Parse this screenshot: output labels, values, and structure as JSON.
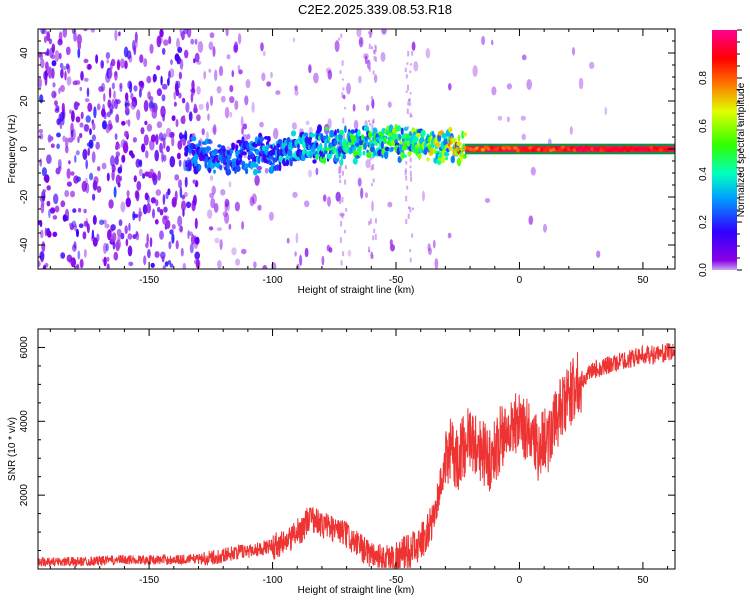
{
  "title": "C2E2.2025.339.08.53.R18",
  "colors": {
    "snr_line": "#ee3333",
    "spectrogram_scatter": "#8a2be2",
    "track_core": "#e6194b"
  },
  "chart_data": [
    {
      "type": "heatmap",
      "name": "spectrogram",
      "xlabel": "Height of straight line (km)",
      "ylabel": "Frequency (Hz)",
      "xlim": [
        -195,
        63
      ],
      "ylim": [
        -50,
        50
      ],
      "xticks": [
        -150,
        -100,
        -50,
        0,
        50
      ],
      "yticks": [
        -40,
        -20,
        0,
        20,
        40
      ],
      "xtick_labels": [
        "-150",
        "-100",
        "-50",
        "0",
        "50"
      ],
      "ytick_labels": [
        "-40",
        "-20",
        "0",
        "20",
        "40"
      ],
      "colorbar": {
        "label": "Normalized spectral amplitude",
        "range": [
          0,
          1
        ],
        "ticks": [
          0.0,
          0.2,
          0.4,
          0.6,
          0.8
        ],
        "tick_labels": [
          "0.0",
          "0.2",
          "0.4",
          "0.6",
          "0.8"
        ],
        "colormap": "hsv (violet to red)"
      },
      "track": {
        "x": [
          -130,
          -115,
          -100,
          -90,
          -80,
          -70,
          -60,
          -50,
          -40,
          -30,
          -20,
          -10,
          0,
          10,
          20,
          40,
          63
        ],
        "freq": [
          -3,
          -3,
          -2,
          0,
          1,
          2,
          3,
          3,
          2,
          1,
          0,
          0,
          0,
          0,
          0,
          0,
          0
        ],
        "amplitude": [
          0.25,
          0.25,
          0.3,
          0.35,
          0.4,
          0.45,
          0.45,
          0.5,
          0.55,
          0.6,
          0.85,
          0.9,
          0.9,
          0.9,
          0.95,
          0.95,
          0.95
        ]
      }
    },
    {
      "type": "line",
      "name": "snr",
      "xlabel": "Height of straight line (km)",
      "ylabel": "SNR (10 * v/v)",
      "xlim": [
        -195,
        63
      ],
      "ylim": [
        0,
        6500
      ],
      "xticks": [
        -150,
        -100,
        -50,
        0,
        50
      ],
      "yticks": [
        2000,
        4000,
        6000
      ],
      "xtick_labels": [
        "-150",
        "-100",
        "-50",
        "0",
        "50"
      ],
      "ytick_labels": [
        "2000",
        "4000",
        "6000"
      ],
      "series": [
        {
          "x": [
            -195,
            -180,
            -160,
            -140,
            -125,
            -115,
            -105,
            -95,
            -88,
            -85,
            -80,
            -75,
            -70,
            -65,
            -60,
            -55,
            -50,
            -45,
            -40,
            -35,
            -32,
            -30,
            -28,
            -25,
            -22,
            -20,
            -18,
            -15,
            -12,
            -10,
            -8,
            -5,
            -2,
            0,
            2,
            5,
            8,
            10,
            12,
            15,
            18,
            20,
            22,
            25,
            28,
            30,
            35,
            40,
            45,
            50,
            55,
            63
          ],
          "values": [
            200,
            200,
            250,
            250,
            300,
            450,
            550,
            700,
            1100,
            1400,
            1200,
            1100,
            900,
            600,
            400,
            300,
            300,
            450,
            700,
            1300,
            2300,
            2800,
            3200,
            3000,
            3400,
            3600,
            3400,
            3200,
            2900,
            3200,
            3500,
            3700,
            3900,
            4100,
            3800,
            3700,
            3200,
            3600,
            3500,
            4100,
            4400,
            4600,
            4900,
            5100,
            5300,
            5400,
            5500,
            5600,
            5700,
            5800,
            5800,
            5900
          ]
        }
      ]
    }
  ]
}
